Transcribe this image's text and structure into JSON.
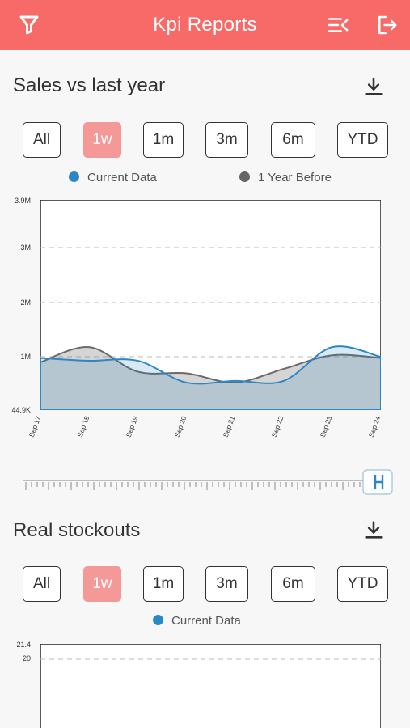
{
  "header": {
    "title": "Kpi Reports",
    "bg_color": "#f76a68",
    "left_icon": "filter-icon",
    "right_icons": [
      "menu-collapse-icon",
      "logout-icon"
    ]
  },
  "filters": [
    "All",
    "1w",
    "1m",
    "3m",
    "6m",
    "YTD"
  ],
  "active_filter": "1w",
  "sales": {
    "title": "Sales vs last year",
    "download_icon": "download-icon",
    "legend": [
      {
        "label": "Current Data",
        "color": "#2d87c4"
      },
      {
        "label": "1 Year Before",
        "color": "#6a6a6a"
      }
    ],
    "range_slider": {
      "value": 1.0
    }
  },
  "stockouts": {
    "title": "Real stockouts",
    "download_icon": "download-icon",
    "legend": [
      {
        "label": "Current Data",
        "color": "#2d87c4"
      }
    ]
  },
  "chart_data": [
    {
      "type": "area",
      "title": "",
      "x": [
        "Sep 17",
        "Sep 18",
        "Sep 19",
        "Sep 20",
        "Sep 21",
        "Sep 22",
        "Sep 23",
        "Sep 24"
      ],
      "y_tick_labels": [
        "3.9M",
        "3M",
        "2M",
        "1M",
        "44.9K"
      ],
      "ylim": [
        44900,
        3900000
      ],
      "grid": true,
      "legend_placement": "top",
      "series": [
        {
          "name": "Current Data",
          "color": "#2d87c4",
          "values": [
            1000000,
            950000,
            950000,
            550000,
            580000,
            580000,
            1200000,
            1020000
          ]
        },
        {
          "name": "1 Year Before",
          "color": "#6a6a6a",
          "values": [
            920000,
            1200000,
            750000,
            720000,
            550000,
            800000,
            1050000,
            1000000
          ]
        }
      ]
    },
    {
      "type": "area",
      "title": "",
      "y_tick_labels": [
        "21.4",
        "20"
      ],
      "ylim": [
        0,
        21.4
      ],
      "grid": true,
      "legend_placement": "top",
      "series": [
        {
          "name": "Current Data",
          "color": "#2d87c4",
          "values": []
        }
      ]
    }
  ]
}
